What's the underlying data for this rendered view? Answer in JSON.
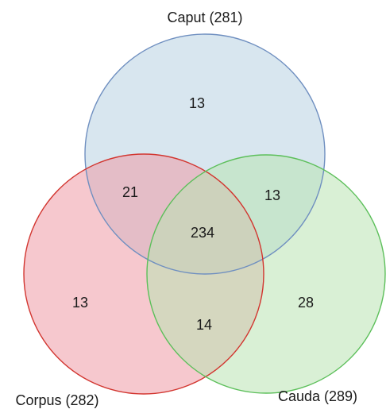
{
  "sets": {
    "caput": {
      "label": "Caput (281)",
      "fill": "#c9dde9",
      "stroke": "#6f8fc0"
    },
    "corpus": {
      "label": "Corpus (282)",
      "fill": "#ef9aa6",
      "stroke": "#d2352f"
    },
    "cauda": {
      "label": "Cauda (289)",
      "fill": "#b9e4b3",
      "stroke": "#5cbf5a"
    }
  },
  "regions": {
    "caput_only": "13",
    "corpus_only": "13",
    "cauda_only": "28",
    "caput_corpus": "21",
    "caput_cauda": "13",
    "corpus_cauda": "14",
    "all_three": "234"
  }
}
